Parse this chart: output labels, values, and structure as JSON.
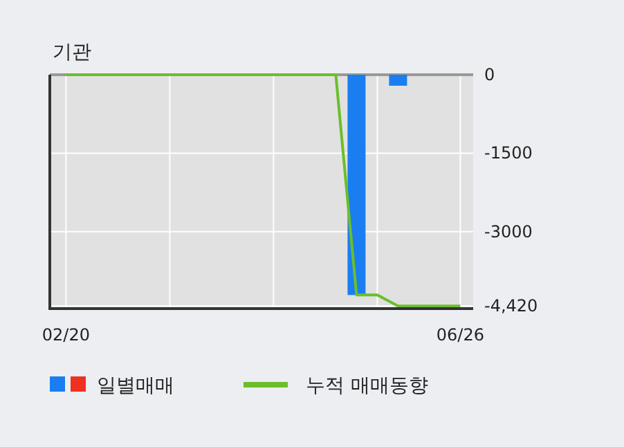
{
  "chart_data": {
    "type": "bar",
    "title": "기관",
    "categories": [
      "02/20",
      null,
      null,
      null,
      null,
      null,
      null,
      null,
      null,
      null,
      null,
      null,
      null,
      null,
      null,
      null,
      null,
      null,
      null,
      "06/26"
    ],
    "series": [
      {
        "name": "일별매매",
        "color": "#1a7ef0",
        "values": [
          0,
          0,
          0,
          0,
          0,
          0,
          0,
          0,
          0,
          0,
          0,
          0,
          0,
          0,
          -4210,
          0,
          -210,
          0,
          0,
          0
        ]
      },
      {
        "name": "누적 매매동향",
        "type": "line",
        "color": "#6abf2a",
        "values": [
          0,
          0,
          0,
          0,
          0,
          0,
          0,
          0,
          0,
          0,
          0,
          0,
          0,
          0,
          -4210,
          -4210,
          -4420,
          -4420,
          -4420,
          -4420
        ]
      }
    ],
    "ylim": [
      -4470,
      0
    ],
    "yticks": [
      0,
      -1500,
      -3000,
      {
        "value": -4420,
        "label": "-4,420"
      }
    ],
    "grid": true,
    "legend": "bottom"
  }
}
